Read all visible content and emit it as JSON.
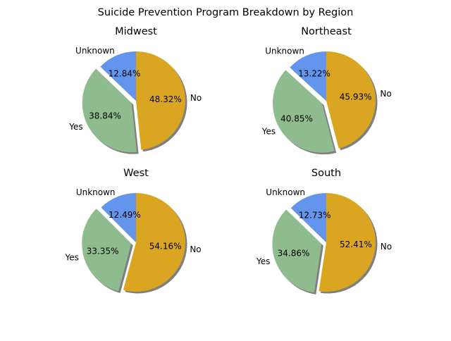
{
  "figure_title": "Suicide Prevention Program Breakdown by Region",
  "chart_data": [
    {
      "type": "pie",
      "title": "Midwest",
      "labels": [
        "Unknown",
        "Yes",
        "No"
      ],
      "values": [
        12.84,
        38.84,
        48.32
      ],
      "value_labels": [
        "12.84%",
        "38.84%",
        "48.32%"
      ],
      "colors": [
        "#6495ED",
        "#8FBC8F",
        "#DAA520"
      ],
      "explode": [
        0,
        0.1,
        0
      ],
      "start_angle": 90,
      "shadow": true
    },
    {
      "type": "pie",
      "title": "Northeast",
      "labels": [
        "Unknown",
        "Yes",
        "No"
      ],
      "values": [
        13.22,
        40.85,
        45.93
      ],
      "value_labels": [
        "13.22%",
        "40.85%",
        "45.93%"
      ],
      "colors": [
        "#6495ED",
        "#8FBC8F",
        "#DAA520"
      ],
      "explode": [
        0,
        0.1,
        0
      ],
      "start_angle": 90,
      "shadow": true
    },
    {
      "type": "pie",
      "title": "West",
      "labels": [
        "Unknown",
        "Yes",
        "No"
      ],
      "values": [
        12.49,
        33.35,
        54.16
      ],
      "value_labels": [
        "12.49%",
        "33.35%",
        "54.16%"
      ],
      "colors": [
        "#6495ED",
        "#8FBC8F",
        "#DAA520"
      ],
      "explode": [
        0,
        0.1,
        0
      ],
      "start_angle": 90,
      "shadow": true
    },
    {
      "type": "pie",
      "title": "South",
      "labels": [
        "Unknown",
        "Yes",
        "No"
      ],
      "values": [
        12.73,
        34.86,
        52.41
      ],
      "value_labels": [
        "12.73%",
        "34.86%",
        "52.41%"
      ],
      "colors": [
        "#6495ED",
        "#8FBC8F",
        "#DAA520"
      ],
      "explode": [
        0,
        0.1,
        0
      ],
      "start_angle": 90,
      "shadow": true
    }
  ]
}
